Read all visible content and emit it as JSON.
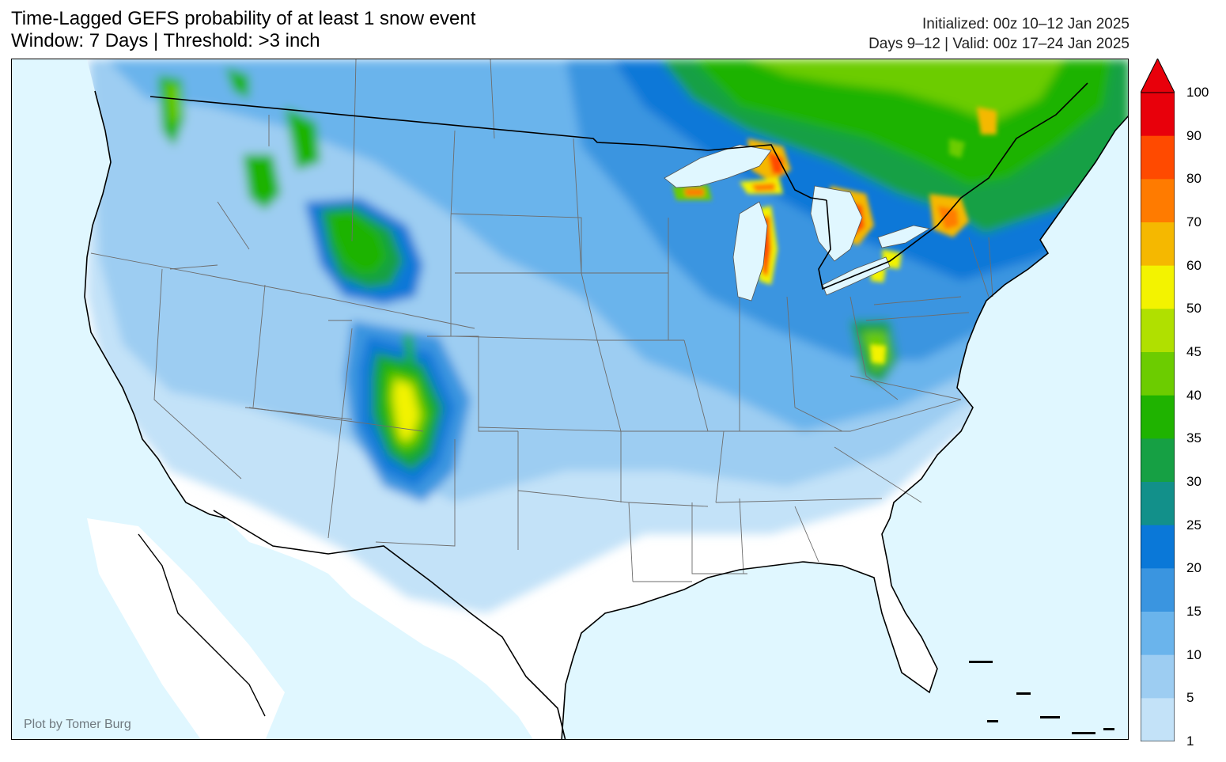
{
  "header": {
    "title_line1": "Time-Lagged GEFS probability of at least 1 snow event",
    "title_line2": "Window: 7 Days | Threshold: >3 inch",
    "init_line": "Initialized: 00z 10–12 Jan 2025",
    "valid_line": "Days 9–12 | Valid: 00z 17–24 Jan 2025"
  },
  "credit": "Plot by Tomer Burg",
  "map": {
    "region": "Contiguous United States",
    "water_color": "#e0f7ff",
    "land_color": "#ffffff",
    "hotspots": [
      "Colorado Rockies",
      "Great Lakes snowbelts",
      "Northern Rockies",
      "Southern Quebec",
      "West Virginia highlands"
    ]
  },
  "colorbar": {
    "ticks": [
      "100",
      "90",
      "80",
      "70",
      "60",
      "50",
      "45",
      "40",
      "35",
      "30",
      "25",
      "20",
      "15",
      "10",
      "5",
      "1"
    ],
    "colors": [
      "#e8000b",
      "#ff4a00",
      "#ff7b00",
      "#f5b800",
      "#f3f300",
      "#b0e000",
      "#6ccc00",
      "#1fb300",
      "#16a044",
      "#12908a",
      "#0a78d8",
      "#3a95e0",
      "#6ab4ec",
      "#9dcdf2",
      "#c3e2f8"
    ]
  }
}
